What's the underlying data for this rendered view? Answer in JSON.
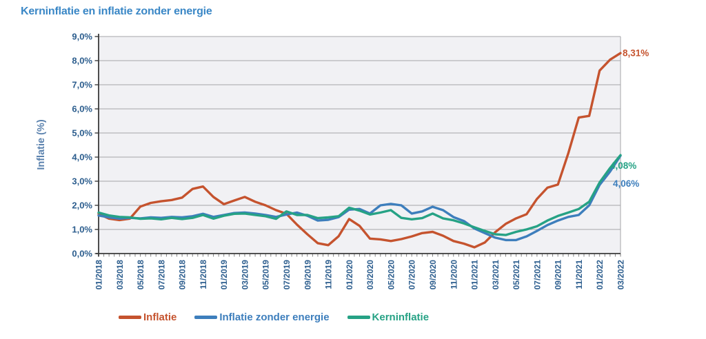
{
  "title": "Kerninflatie en inflatie zonder energie",
  "y_axis": {
    "label": "Inflatie (%)",
    "tick_labels": [
      "9,0%",
      "8,0%",
      "7,0%",
      "6,0%",
      "5,0%",
      "4,0%",
      "3,0%",
      "2,0%",
      "1,0%",
      "0,0%"
    ]
  },
  "colors": {
    "title_blue": "#3a87c6",
    "tick_blue": "#2d5e8e",
    "axis_label_blue": "#5b82ae",
    "axis_line": "#3a3a3a",
    "grid": "#a5a5a8",
    "plot_bg": "#f1f1f4"
  },
  "chart_data": {
    "type": "line",
    "title": "Kerninflatie en inflatie zonder energie",
    "xlabel": "",
    "ylabel": "Inflatie (%)",
    "ylim": [
      0,
      9
    ],
    "y_tick_step_pct": 1.0,
    "grid": "horizontal",
    "legend_position": "bottom",
    "x_tick_rotation": 90,
    "months": [
      "01/2018",
      "02/2018",
      "03/2018",
      "04/2018",
      "05/2018",
      "06/2018",
      "07/2018",
      "08/2018",
      "09/2018",
      "10/2018",
      "11/2018",
      "12/2018",
      "01/2019",
      "02/2019",
      "03/2019",
      "04/2019",
      "05/2019",
      "06/2019",
      "07/2019",
      "08/2019",
      "09/2019",
      "10/2019",
      "11/2019",
      "12/2019",
      "01/2020",
      "02/2020",
      "03/2020",
      "04/2020",
      "05/2020",
      "06/2020",
      "07/2020",
      "08/2020",
      "09/2020",
      "10/2020",
      "11/2020",
      "12/2020",
      "01/2021",
      "02/2021",
      "03/2021",
      "04/2021",
      "05/2021",
      "06/2021",
      "07/2021",
      "08/2021",
      "09/2021",
      "10/2021",
      "11/2021",
      "12/2021",
      "01/2022",
      "02/2022",
      "03/2022"
    ],
    "series": [
      {
        "name": "Inflatie",
        "color": "#c5532e",
        "end_label": "8,31%",
        "values": [
          1.65,
          1.45,
          1.39,
          1.45,
          1.95,
          2.1,
          2.17,
          2.22,
          2.32,
          2.68,
          2.78,
          2.35,
          2.05,
          2.2,
          2.35,
          2.15,
          2.0,
          1.8,
          1.65,
          1.2,
          0.8,
          0.43,
          0.35,
          0.72,
          1.43,
          1.15,
          0.62,
          0.59,
          0.52,
          0.6,
          0.71,
          0.85,
          0.9,
          0.74,
          0.52,
          0.41,
          0.26,
          0.46,
          0.89,
          1.23,
          1.46,
          1.63,
          2.27,
          2.73,
          2.86,
          4.16,
          5.64,
          5.71,
          7.59,
          8.04,
          8.31
        ]
      },
      {
        "name": "Inflatie zonder energie",
        "color": "#3d7ebc",
        "end_label": "4,06%",
        "values": [
          1.58,
          1.5,
          1.45,
          1.48,
          1.46,
          1.5,
          1.48,
          1.52,
          1.5,
          1.55,
          1.65,
          1.52,
          1.6,
          1.68,
          1.7,
          1.66,
          1.6,
          1.52,
          1.62,
          1.7,
          1.57,
          1.37,
          1.4,
          1.51,
          1.82,
          1.85,
          1.66,
          2.0,
          2.06,
          2.0,
          1.66,
          1.75,
          1.94,
          1.8,
          1.51,
          1.35,
          1.04,
          0.85,
          0.66,
          0.56,
          0.56,
          0.71,
          0.94,
          1.18,
          1.37,
          1.52,
          1.6,
          2.0,
          2.85,
          3.4,
          4.06
        ]
      },
      {
        "name": "Kerninflatie",
        "color": "#26a285",
        "end_label": "4,08%",
        "values": [
          1.7,
          1.58,
          1.52,
          1.5,
          1.44,
          1.46,
          1.42,
          1.48,
          1.43,
          1.48,
          1.6,
          1.45,
          1.57,
          1.65,
          1.66,
          1.6,
          1.55,
          1.44,
          1.75,
          1.6,
          1.6,
          1.47,
          1.5,
          1.55,
          1.9,
          1.78,
          1.62,
          1.7,
          1.8,
          1.48,
          1.42,
          1.47,
          1.66,
          1.46,
          1.38,
          1.25,
          1.09,
          0.94,
          0.8,
          0.77,
          0.9,
          1.0,
          1.13,
          1.37,
          1.56,
          1.7,
          1.85,
          2.15,
          2.95,
          3.55,
          4.08
        ]
      }
    ]
  }
}
